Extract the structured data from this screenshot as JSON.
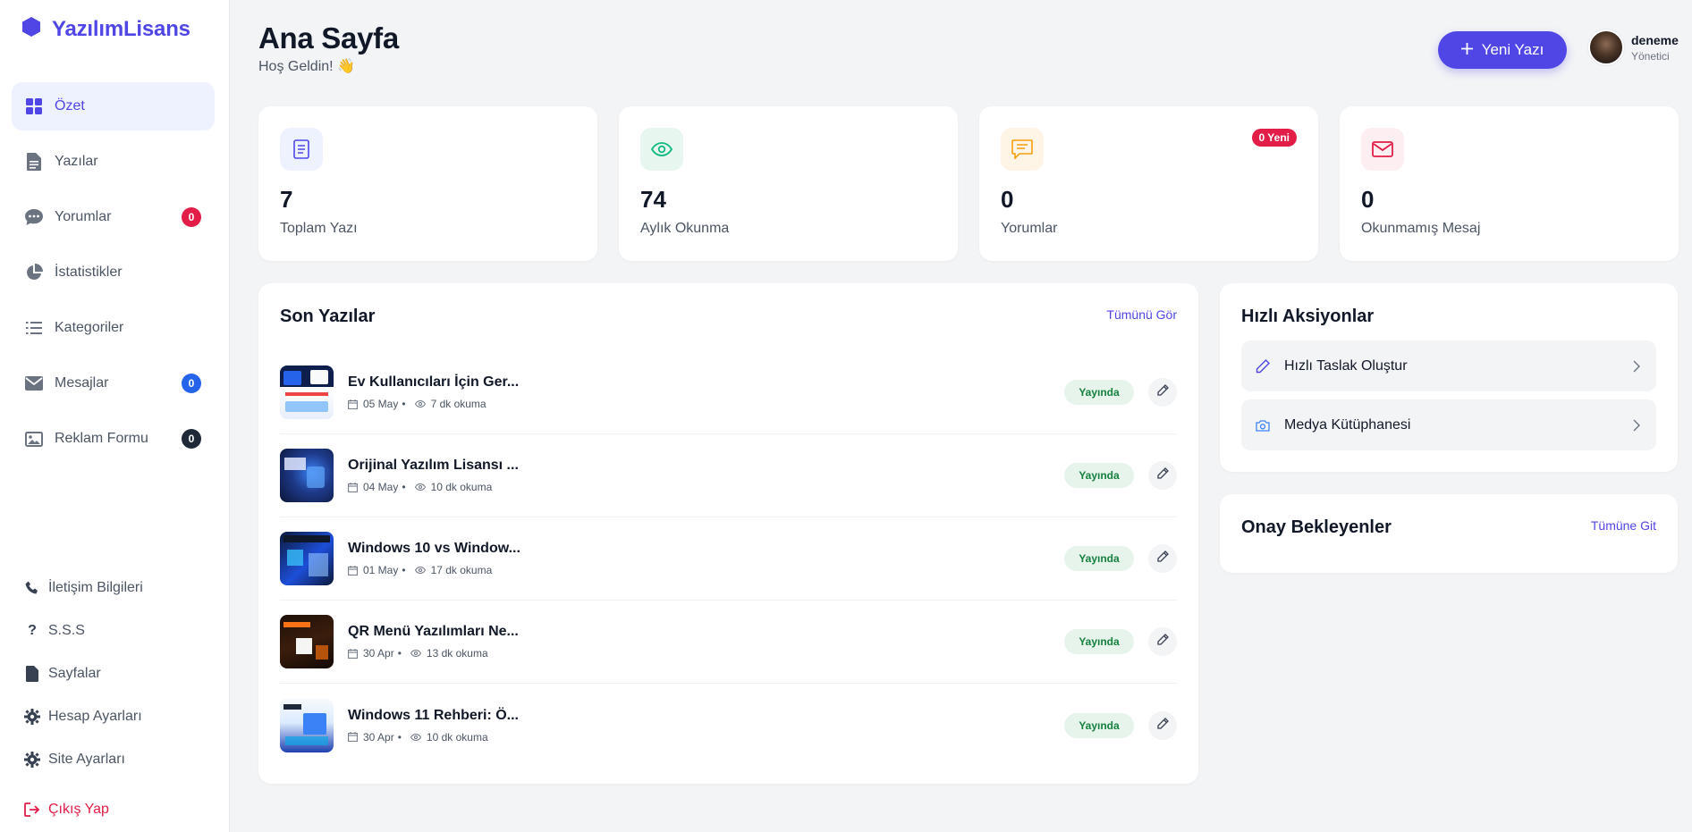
{
  "brand": {
    "name": "YazılımLisans"
  },
  "sidebar": {
    "items": [
      {
        "label": "Özet",
        "active": true
      },
      {
        "label": "Yazılar"
      },
      {
        "label": "Yorumlar",
        "badge": "0",
        "badge_color": "#e11d48"
      },
      {
        "label": "İstatistikler"
      },
      {
        "label": "Kategoriler"
      },
      {
        "label": "Mesajlar",
        "badge": "0",
        "badge_color": "#2563eb"
      },
      {
        "label": "Reklam Formu",
        "badge": "0",
        "badge_color": "#1f2937"
      }
    ],
    "sub_items": [
      {
        "label": "İletişim Bilgileri"
      },
      {
        "label": "S.S.S"
      },
      {
        "label": "Sayfalar"
      },
      {
        "label": "Hesap Ayarları"
      },
      {
        "label": "Site Ayarları"
      }
    ],
    "logout_label": "Çıkış Yap"
  },
  "header": {
    "title": "Ana Sayfa",
    "subtitle": "Hoş Geldin! 👋",
    "new_post_label": "Yeni Yazı",
    "user_name": "deneme",
    "user_role": "Yönetici"
  },
  "stats": [
    {
      "value": "7",
      "label": "Toplam Yazı",
      "icon": "document-icon"
    },
    {
      "value": "74",
      "label": "Aylık Okunma",
      "icon": "eye-icon"
    },
    {
      "value": "0",
      "label": "Yorumlar",
      "icon": "comment-icon",
      "badge": "0 Yeni"
    },
    {
      "value": "0",
      "label": "Okunmamış Mesaj",
      "icon": "envelope-icon"
    }
  ],
  "recent_posts": {
    "title": "Son Yazılar",
    "link": "Tümünü Gör",
    "items": [
      {
        "title": "Ev Kullanıcıları İçin Ger...",
        "date": "05 May",
        "read": "7 dk okuma",
        "status": "Yayında"
      },
      {
        "title": "Orijinal Yazılım Lisansı ...",
        "date": "04 May",
        "read": "10 dk okuma",
        "status": "Yayında"
      },
      {
        "title": "Windows 10 vs Window...",
        "date": "01 May",
        "read": "17 dk okuma",
        "status": "Yayında"
      },
      {
        "title": "QR Menü Yazılımları Ne...",
        "date": "30 Apr",
        "read": "13 dk okuma",
        "status": "Yayında"
      },
      {
        "title": "Windows 11 Rehberi: Ö...",
        "date": "30 Apr",
        "read": "10 dk okuma",
        "status": "Yayında"
      }
    ]
  },
  "quick_actions": {
    "title": "Hızlı Aksiyonlar",
    "items": [
      {
        "label": "Hızlı Taslak Oluştur",
        "icon": "pencil-icon"
      },
      {
        "label": "Medya Kütüphanesi",
        "icon": "camera-icon"
      }
    ]
  },
  "pending": {
    "title": "Onay Bekleyenler",
    "link": "Tümüne Git"
  },
  "colors": {
    "accent": "#4f46e5",
    "danger": "#e11d48",
    "success": "#15803d",
    "background": "#f3f4f6"
  }
}
